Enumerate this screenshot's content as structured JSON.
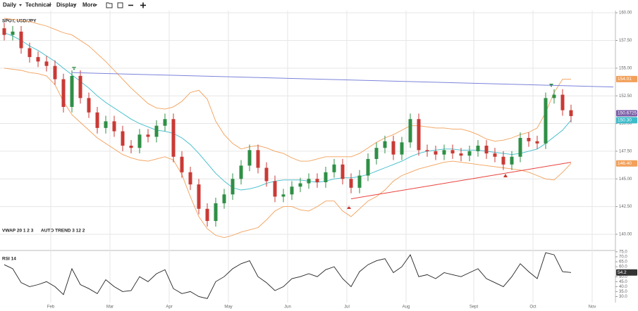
{
  "toolbar": {
    "menus": [
      "Daily",
      "Technical",
      "Display",
      "More"
    ]
  },
  "chart_data": {
    "type": "candlestick",
    "title": "SPOT, USD/JPY",
    "categories": [
      null,
      null,
      null,
      null,
      null,
      null,
      "Feb",
      null,
      null,
      null,
      null,
      null,
      null,
      "Mar",
      null,
      null,
      null,
      null,
      null,
      null,
      "Apr",
      null,
      null,
      null,
      null,
      null,
      null,
      "May",
      null,
      null,
      null,
      null,
      null,
      null,
      "Jun",
      null,
      null,
      null,
      null,
      null,
      null,
      "Jul",
      null,
      null,
      null,
      null,
      null,
      null,
      "Aug",
      null,
      null,
      null,
      null,
      null,
      null,
      null,
      "Sept",
      null,
      null,
      null,
      null,
      null,
      null,
      "Oct",
      null,
      null,
      null,
      null,
      null,
      null,
      "Nov",
      null,
      null
    ],
    "open": [
      158.6,
      158,
      158.3,
      156.8,
      156,
      155.6,
      155.2,
      154,
      151.5,
      154.3,
      152.3,
      151,
      149.6,
      150.2,
      149.3,
      148,
      147.8,
      149,
      148.8,
      149.8,
      150.4,
      147,
      145.6,
      144.5,
      142.3,
      141.2,
      142.8,
      143.6,
      145,
      146.2,
      147.6,
      146,
      144.8,
      143.4,
      143.6,
      144.3,
      144.6,
      145,
      144.7,
      145.6,
      146.3,
      145,
      144.2,
      145.3,
      146.8,
      147.8,
      148.4,
      147.2,
      148.3,
      150.4,
      147.6,
      147.5,
      147.2,
      147.6,
      147.3,
      147.1,
      147.5,
      148,
      147.3,
      147,
      146.3,
      147,
      148.7,
      148.4,
      148.2,
      152.3,
      152.6,
      151.2,
      null,
      null,
      null,
      null,
      null
    ],
    "high": [
      159.1,
      158.8,
      158.8,
      157.3,
      156.5,
      156.1,
      155.7,
      154.5,
      154.8,
      154.8,
      152.8,
      151.5,
      150.7,
      150.7,
      149.8,
      148.5,
      149.5,
      149.5,
      150.3,
      150.9,
      150.9,
      147.5,
      146.1,
      145,
      142.8,
      143.3,
      144.1,
      145.5,
      146.7,
      148.1,
      148.1,
      146.5,
      145.3,
      144.1,
      144.8,
      145.1,
      145.5,
      145.5,
      146.1,
      146.8,
      146.8,
      145.5,
      145.8,
      147.3,
      148.3,
      148.9,
      148.9,
      148.8,
      150.9,
      150.9,
      148.1,
      148,
      148.1,
      148.1,
      147.8,
      148,
      148.5,
      148.5,
      147.8,
      147.5,
      147.5,
      149.2,
      149.2,
      148.9,
      152.8,
      153.1,
      153.1,
      151.7,
      null,
      null,
      null,
      null,
      null
    ],
    "low": [
      157.5,
      157.5,
      156.3,
      155.5,
      155.1,
      154.7,
      153.5,
      151,
      151,
      151.8,
      150.5,
      149.1,
      149.1,
      148.8,
      147.5,
      147.3,
      147.3,
      148.3,
      148.3,
      149.3,
      146.5,
      145.1,
      144,
      141.8,
      140.7,
      140.7,
      142.3,
      143.1,
      144.5,
      145.7,
      145.5,
      144.3,
      142.9,
      142.9,
      143.1,
      143.8,
      144.1,
      144.2,
      144.2,
      145.1,
      144.5,
      143.7,
      143.7,
      144.8,
      146.3,
      147.3,
      146.7,
      146.7,
      147.8,
      147.1,
      147,
      146.7,
      146.7,
      146.8,
      146.6,
      146.6,
      147,
      146.8,
      146.5,
      145.8,
      145.8,
      146.5,
      147.9,
      147.7,
      147.7,
      151.8,
      150.7,
      150.1,
      null,
      null,
      null,
      null,
      null
    ],
    "close": [
      158,
      158.3,
      156.8,
      156,
      155.6,
      155.2,
      154,
      151.5,
      154.3,
      152.3,
      151,
      149.6,
      150.2,
      149.3,
      148,
      147.8,
      149,
      148.8,
      149.8,
      150.4,
      147,
      145.6,
      144.5,
      142.3,
      141.2,
      142.8,
      143.6,
      145,
      146.2,
      147.6,
      146,
      144.8,
      143.4,
      143.6,
      144.3,
      144.6,
      145,
      144.7,
      145.6,
      146.3,
      145,
      144.2,
      145.3,
      146.8,
      147.8,
      148.4,
      147.2,
      148.3,
      150.4,
      147.6,
      147.5,
      147.2,
      147.6,
      147.3,
      147.1,
      147.5,
      148,
      147.3,
      147,
      146.3,
      147,
      148.7,
      148.4,
      148.2,
      152.3,
      152.6,
      151.2,
      150.6725,
      null,
      null,
      null,
      null,
      null
    ],
    "last_label": "150.6725",
    "up_color": "#2f8f46",
    "down_color": "#c93a35",
    "last_color": "#7b5ea7",
    "ylim": [
      138.6,
      160.2
    ],
    "yticks": [
      {
        "value": 160,
        "label": "160.00"
      },
      {
        "value": 157.5,
        "label": "157.50"
      },
      {
        "value": 155,
        "label": "155.00"
      },
      {
        "value": 152.5,
        "label": "152.50"
      },
      {
        "value": 150,
        "label": "150.00"
      },
      {
        "value": 147.5,
        "label": "147.50"
      },
      {
        "value": 145,
        "label": "145.00"
      },
      {
        "value": 142.5,
        "label": "142.50"
      },
      {
        "value": 140,
        "label": "140.00"
      }
    ],
    "grid": true,
    "overlay": {
      "label": "VWAP 20 1 2 3",
      "lines": [
        {
          "color": "#f2a05a",
          "last_label": "154.01",
          "values": [
            159.5,
            159.4,
            159.3,
            159.2,
            159,
            158.8,
            158.5,
            158.2,
            158,
            157.5,
            157,
            156.3,
            155.6,
            154.8,
            154,
            153.2,
            152.5,
            151.8,
            151.4,
            151.3,
            151.5,
            152,
            152.8,
            153,
            152.2,
            150.2,
            149,
            148.2,
            147.7,
            147.9,
            148,
            147.8,
            147.5,
            147.3,
            146.9,
            146.6,
            146.6,
            146.8,
            147,
            147,
            147,
            147,
            147.3,
            147.8,
            148.3,
            148.7,
            149,
            149.4,
            149.8,
            149.8,
            149.7,
            149.6,
            149.6,
            149.5,
            149.5,
            149.3,
            149,
            148.6,
            148.4,
            148.5,
            148.7,
            149,
            149.2,
            149.6,
            151,
            152.8,
            154,
            154.01,
            null,
            null,
            null,
            null,
            null
          ]
        },
        {
          "color": "#3dbccb",
          "last_label": "150.30",
          "values": [
            158.2,
            157.9,
            157.5,
            157,
            156.6,
            156.1,
            155.6,
            155,
            154.4,
            153.8,
            153.2,
            152.5,
            151.9,
            151.4,
            150.9,
            150.4,
            150,
            149.7,
            149.4,
            149.3,
            149.1,
            148.7,
            148.1,
            147.3,
            146.4,
            145.5,
            144.8,
            144.2,
            144,
            144.1,
            144.3,
            144.6,
            144.8,
            144.9,
            144.9,
            144.9,
            144.8,
            144.7,
            144.8,
            145,
            145.1,
            145.1,
            145.2,
            145.4,
            145.7,
            146,
            146.3,
            146.6,
            147,
            147.3,
            147.5,
            147.6,
            147.7,
            147.7,
            147.6,
            147.6,
            147.6,
            147.5,
            147.4,
            147.3,
            147.2,
            147.3,
            147.5,
            147.7,
            148.2,
            148.8,
            149.4,
            150.3,
            null,
            null,
            null,
            null,
            null
          ]
        },
        {
          "color": "#f2a05a",
          "last_label": "146.40",
          "values": [
            155,
            154.9,
            154.8,
            154.6,
            154.5,
            154.3,
            153.5,
            152,
            150.8,
            150.1,
            149.4,
            148.7,
            148.2,
            147.7,
            147.2,
            146.9,
            146.7,
            146.6,
            146.8,
            147,
            146.7,
            145.4,
            143.4,
            141.6,
            140.5,
            139.9,
            139.7,
            139.9,
            140.2,
            140.4,
            140.6,
            141.3,
            142.1,
            142.5,
            142.5,
            142.2,
            142.1,
            142.5,
            143,
            143,
            142.1,
            141.6,
            142.3,
            143,
            143.4,
            144,
            144.8,
            145.3,
            145.6,
            145.9,
            146.1,
            146.3,
            146.5,
            146.6,
            146.5,
            146.4,
            146.3,
            146.2,
            146.1,
            146,
            145.9,
            145.8,
            145.6,
            145.3,
            145,
            144.9,
            145.6,
            146.4,
            null,
            null,
            null,
            null,
            null
          ]
        }
      ]
    },
    "trend": {
      "label": "AUTO TREND 3 12 2",
      "lines": [
        {
          "color": "#7b83d9",
          "from": 8,
          "to": 72,
          "values": [
            154.6,
            153.3
          ]
        },
        {
          "color": "#e8413c",
          "from": 41,
          "to": 67,
          "values": [
            143.2,
            146.5
          ]
        }
      ]
    },
    "rsi": {
      "label": "RSI 14",
      "color": "#222222",
      "last_label": "54.2",
      "values": [
        62,
        58,
        44,
        40,
        42,
        45,
        40,
        32,
        58,
        42,
        38,
        33,
        47,
        40,
        35,
        36,
        50,
        45,
        53,
        57,
        38,
        33,
        35,
        30,
        28,
        45,
        50,
        58,
        63,
        66,
        50,
        44,
        36,
        40,
        48,
        50,
        53,
        50,
        57,
        60,
        48,
        40,
        55,
        62,
        66,
        68,
        54,
        60,
        72,
        50,
        52,
        48,
        54,
        52,
        50,
        54,
        58,
        48,
        44,
        40,
        50,
        63,
        55,
        48,
        74,
        72,
        55,
        54.2,
        null,
        null,
        null,
        null,
        null
      ],
      "ylim": [
        24,
        77
      ],
      "yticks": [
        {
          "value": 75,
          "label": "75.0"
        },
        {
          "value": 70,
          "label": "70.0"
        },
        {
          "value": 65,
          "label": "65.0"
        },
        {
          "value": 60,
          "label": "60.0"
        },
        {
          "value": 50,
          "label": "50.0"
        },
        {
          "value": 45,
          "label": "45.0"
        },
        {
          "value": 40,
          "label": "40.0"
        },
        {
          "value": 35,
          "label": "35.0"
        },
        {
          "value": 30,
          "label": "30.0"
        }
      ]
    }
  }
}
